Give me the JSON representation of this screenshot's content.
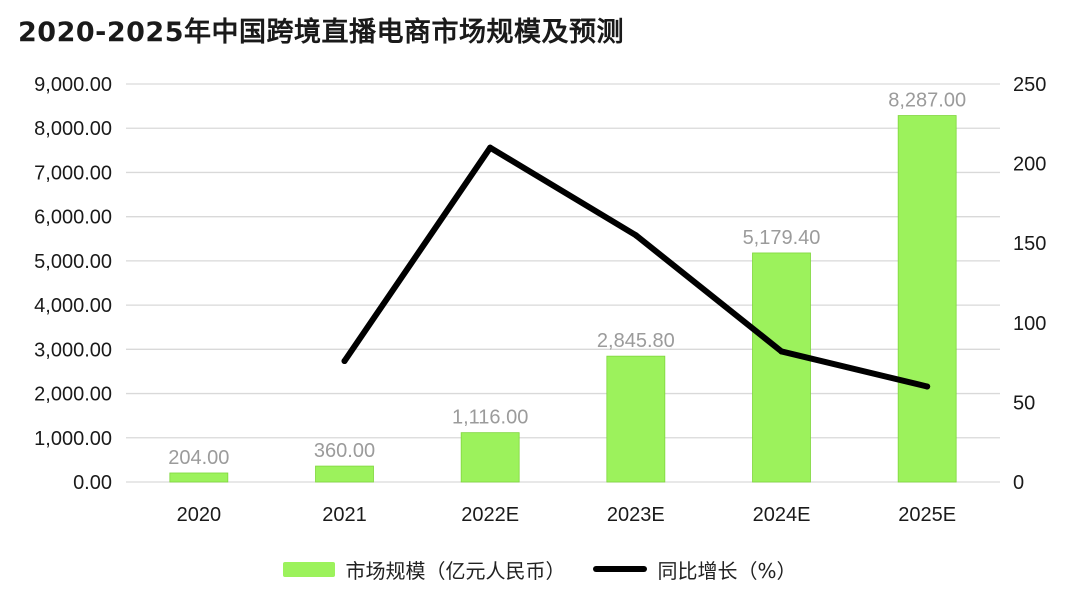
{
  "title": "2020-2025年中国跨境直播电商市场规模及预测",
  "colors": {
    "bar": "#9cf25c",
    "bar_edge": "#7fd63c",
    "line": "#000000",
    "grid": "#d9d9d9",
    "axis_text": "#1a1a1a",
    "data_label": "#9b9b9b"
  },
  "chart_data": {
    "type": "bar",
    "categories": [
      "2020",
      "2021",
      "2022E",
      "2023E",
      "2024E",
      "2025E"
    ],
    "series": [
      {
        "name": "市场规模（亿元人民币）",
        "type": "bar",
        "axis": "left",
        "values": [
          204,
          360,
          1116,
          2845.8,
          5179.4,
          8287
        ],
        "data_labels": [
          "204.00",
          "360.00",
          "1,116.00",
          "2,845.80",
          "5,179.40",
          "8,287.00"
        ]
      },
      {
        "name": "同比增长（%）",
        "type": "line",
        "axis": "right",
        "values": [
          null,
          76,
          210,
          155,
          82,
          60
        ]
      }
    ],
    "y_left": {
      "ylim": [
        0,
        9000
      ],
      "ticks": [
        0,
        1000,
        2000,
        3000,
        4000,
        5000,
        6000,
        7000,
        8000,
        9000
      ],
      "tick_labels": [
        "0.00",
        "1,000.00",
        "2,000.00",
        "3,000.00",
        "4,000.00",
        "5,000.00",
        "6,000.00",
        "7,000.00",
        "8,000.00",
        "9,000.00"
      ]
    },
    "y_right": {
      "ylim": [
        0,
        250
      ],
      "ticks": [
        0,
        50,
        100,
        150,
        200,
        250
      ],
      "tick_labels": [
        "0",
        "50",
        "100",
        "150",
        "200",
        "250"
      ]
    },
    "grid": true,
    "legend_position": "bottom"
  }
}
